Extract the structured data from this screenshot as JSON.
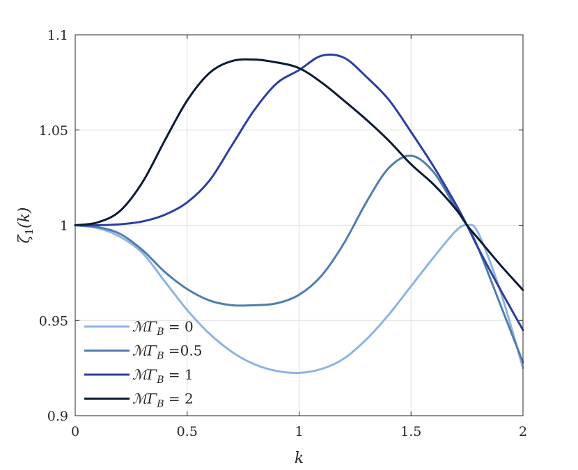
{
  "chart_data": {
    "type": "line",
    "title": "",
    "xlabel": "k",
    "ylabel_main": "ζ",
    "ylabel_sub": "1",
    "ylabel_arg": "(k)",
    "xlim": [
      0,
      2
    ],
    "ylim": [
      0.9,
      1.1
    ],
    "xticks": [
      0,
      0.5,
      1,
      1.5,
      2
    ],
    "xtick_labels": [
      "0",
      "0.5",
      "1",
      "1.5",
      "2"
    ],
    "yticks": [
      0.9,
      0.95,
      1,
      1.05,
      1.1
    ],
    "ytick_labels": [
      "0.9",
      "0.95",
      "1",
      "1.05",
      "1.1"
    ],
    "grid": true,
    "legend_position": "bottom-left",
    "x": [
      0,
      0.1,
      0.2,
      0.3,
      0.4,
      0.5,
      0.6,
      0.7,
      0.8,
      0.9,
      1.0,
      1.1,
      1.2,
      1.3,
      1.4,
      1.5,
      1.6,
      1.7,
      1.75,
      1.8,
      1.9,
      2.0
    ],
    "series": [
      {
        "name": "ℳΓB = 0",
        "legend_math": "ℳΓ",
        "legend_sub": "B",
        "legend_rest": " = 0",
        "color": "#8db4e0",
        "values": [
          1.0,
          0.9985,
          0.994,
          0.9855,
          0.9705,
          0.9555,
          0.943,
          0.9335,
          0.927,
          0.9235,
          0.9225,
          0.9245,
          0.93,
          0.94,
          0.953,
          0.968,
          0.983,
          0.997,
          1.0,
          0.996,
          0.965,
          0.925
        ]
      },
      {
        "name": "ℳΓB =0.5",
        "legend_math": "ℳΓ",
        "legend_sub": "B",
        "legend_rest": " =0.5",
        "color": "#4f7db0",
        "values": [
          1.0,
          0.999,
          0.9955,
          0.987,
          0.9755,
          0.9665,
          0.9605,
          0.958,
          0.958,
          0.959,
          0.9635,
          0.9735,
          0.9905,
          1.012,
          1.03,
          1.0365,
          1.028,
          1.009,
          1.0,
          0.988,
          0.958,
          0.928
        ]
      },
      {
        "name": "ℳΓB = 1",
        "legend_math": "ℳΓ",
        "legend_sub": "B",
        "legend_rest": " = 1",
        "color": "#2c3ea0",
        "values": [
          1.0,
          1.0,
          1.0005,
          1.002,
          1.0055,
          1.012,
          1.0235,
          1.042,
          1.0605,
          1.0745,
          1.0815,
          1.089,
          1.088,
          1.078,
          1.066,
          1.049,
          1.031,
          1.011,
          1.0,
          0.988,
          0.966,
          0.945
        ]
      },
      {
        "name": "ℳΓB = 2",
        "legend_math": "ℳΓ",
        "legend_sub": "B",
        "legend_rest": " = 2",
        "color": "#0d1a33",
        "values": [
          1.0,
          1.0015,
          1.0075,
          1.0225,
          1.0445,
          1.0655,
          1.08,
          1.0862,
          1.087,
          1.0855,
          1.0825,
          1.075,
          1.0655,
          1.0555,
          1.0445,
          1.032,
          1.0215,
          1.0085,
          1.0,
          0.993,
          0.979,
          0.966
        ]
      }
    ]
  }
}
